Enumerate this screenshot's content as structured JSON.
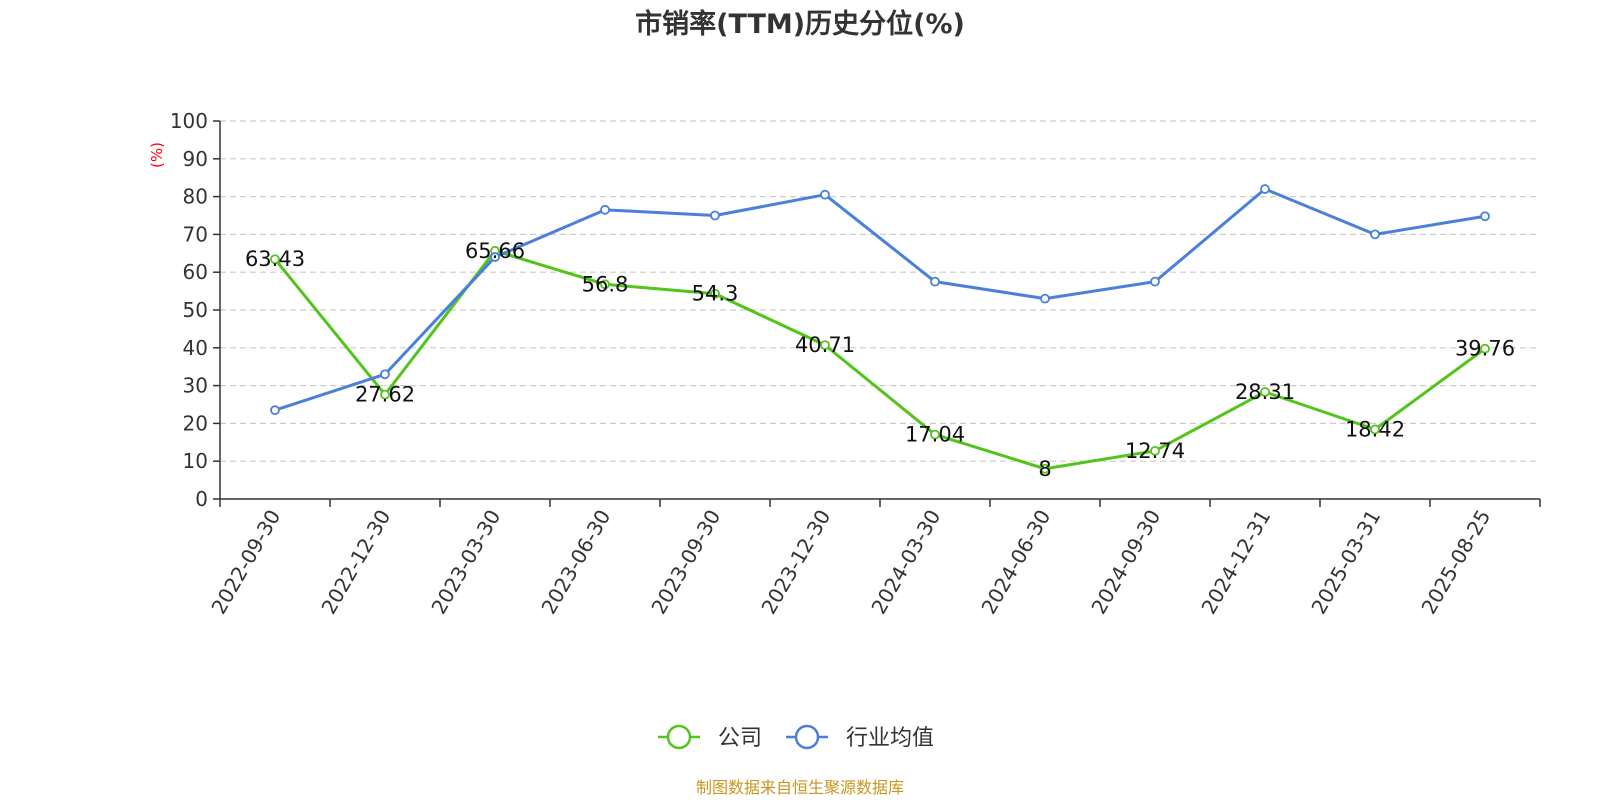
{
  "colors": {
    "company": "#52c41a",
    "industry": "#4a7fdc",
    "ylabel": "#ff0000",
    "footer": "#c8961e",
    "grid": "#cccccc",
    "axis": "#333333"
  },
  "footer": "制图数据来自恒生聚源数据库",
  "chart_data": {
    "type": "line",
    "title": "市销率(TTM)历史分位(%)",
    "ylabel": "(%)",
    "ylim": [
      0,
      100
    ],
    "yticks": [
      0,
      10,
      20,
      30,
      40,
      50,
      60,
      70,
      80,
      90,
      100
    ],
    "grid": true,
    "legend_position": "bottom-center",
    "categories": [
      "2022-09-30",
      "2022-12-30",
      "2023-03-30",
      "2023-06-30",
      "2023-09-30",
      "2023-12-30",
      "2024-03-30",
      "2024-06-30",
      "2024-09-30",
      "2024-12-31",
      "2025-03-31",
      "2025-08-25"
    ],
    "series": [
      {
        "name": "公司",
        "color": "#52c41a",
        "values": [
          63.43,
          27.62,
          65.66,
          56.8,
          54.3,
          40.71,
          17.04,
          8,
          12.74,
          28.31,
          18.42,
          39.76
        ],
        "labels": [
          "63.43",
          "27.62",
          "65.66",
          "56.8",
          "54.3",
          "40.71",
          "17.04",
          "8",
          "12.74",
          "28.31",
          "18.42",
          "39.76"
        ]
      },
      {
        "name": "行业均值",
        "color": "#4a7fdc",
        "values": [
          23.5,
          33,
          64,
          76.5,
          75,
          80.5,
          57.5,
          53,
          57.5,
          82,
          70,
          74.8
        ]
      }
    ]
  }
}
